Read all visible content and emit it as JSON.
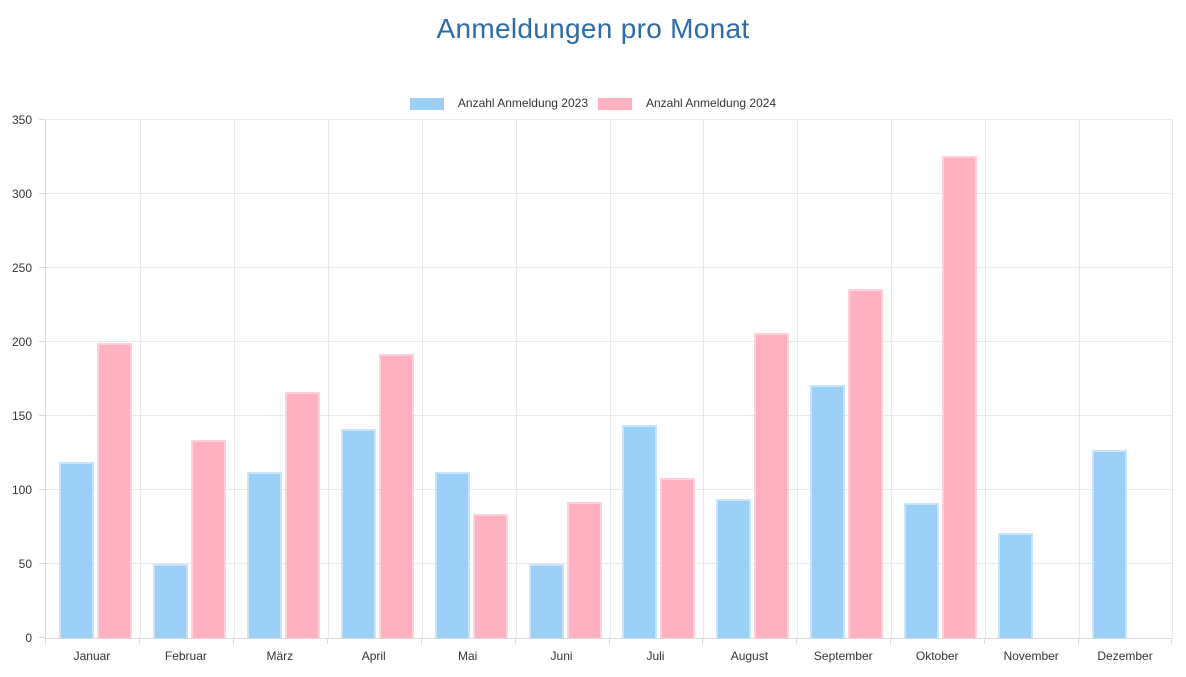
{
  "title": "Anmeldungen pro Monat",
  "legend": {
    "items": [
      {
        "label": "Anzahl Anmeldung 2023",
        "color": "#9ad0f5"
      },
      {
        "label": "Anzahl Anmeldung 2024",
        "color": "#ffb1c1"
      }
    ]
  },
  "colors": {
    "title": "#2a6cad",
    "axis_text": "#333333",
    "grid": "#e8e8e8",
    "axis_border": "#d9d9d9",
    "series_2023_fill": "#9ad0f5",
    "series_2023_border": "#c6e4fa",
    "series_2024_fill": "#ffb1c1",
    "series_2024_border": "#ffd0da"
  },
  "chart_data": {
    "type": "bar",
    "title": "Anmeldungen pro Monat",
    "categories": [
      "Januar",
      "Februar",
      "März",
      "April",
      "Mai",
      "Juni",
      "Juli",
      "August",
      "September",
      "Oktober",
      "November",
      "Dezember"
    ],
    "series": [
      {
        "name": "Anzahl Anmeldung 2023",
        "year": "2023",
        "color": "#9ad0f5",
        "border_color": "#c6e4fa",
        "values": [
          119,
          50,
          112,
          141,
          112,
          50,
          144,
          94,
          171,
          91,
          71,
          127
        ]
      },
      {
        "name": "Anzahl Anmeldung 2024",
        "year": "2024",
        "color": "#ffb1c1",
        "border_color": "#ffd0da",
        "values": [
          199,
          134,
          166,
          192,
          84,
          92,
          108,
          206,
          236,
          326,
          0,
          0
        ]
      }
    ],
    "xlabel": "",
    "ylabel": "",
    "ylim": [
      0,
      350
    ],
    "ytick_step": 50,
    "grid": true,
    "legend_position": "top"
  }
}
